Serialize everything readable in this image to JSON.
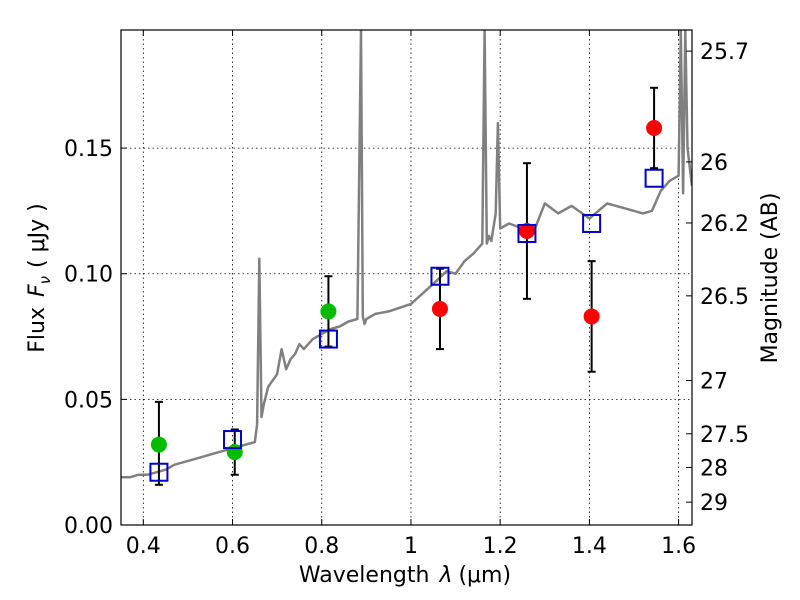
{
  "chart_data": {
    "type": "scatter",
    "xlabel": "Wavelength",
    "xlabel_symbol": "λ",
    "xlabel_unit": "(μm)",
    "ylabel": "Flux",
    "ylabel_symbol": "F",
    "ylabel_subscript": "ν",
    "ylabel_unit": "( μJy )",
    "y2label": "Magnitude (AB)",
    "xlim": [
      0.35,
      1.63
    ],
    "ylim": [
      0.0,
      0.197
    ],
    "grid": true,
    "xticks": [
      0.4,
      0.6,
      0.8,
      1.0,
      1.2,
      1.4,
      1.6
    ],
    "xtick_labels": [
      "0.4",
      "0.6",
      "0.8",
      "1",
      "1.2",
      "1.4",
      "1.6"
    ],
    "yticks": [
      0.0,
      0.05,
      0.1,
      0.15
    ],
    "ytick_labels": [
      "0.00",
      "0.05",
      "0.10",
      "0.15"
    ],
    "y2ticks": [
      {
        "label": "25.7",
        "flux": 0.1886
      },
      {
        "label": "26",
        "flux": 0.1445
      },
      {
        "label": "26.2",
        "flux": 0.1202
      },
      {
        "label": "26.5",
        "flux": 0.0912
      },
      {
        "label": "27",
        "flux": 0.0575
      },
      {
        "label": "27.5",
        "flux": 0.0363
      },
      {
        "label": "28",
        "flux": 0.0229
      },
      {
        "label": "29",
        "flux": 0.0091
      }
    ],
    "series": [
      {
        "name": "model spectrum",
        "kind": "line",
        "color": "#808080",
        "x": [
          0.35,
          0.37,
          0.39,
          0.41,
          0.43,
          0.45,
          0.47,
          0.49,
          0.51,
          0.53,
          0.55,
          0.57,
          0.59,
          0.61,
          0.63,
          0.65,
          0.655,
          0.66,
          0.665,
          0.67,
          0.68,
          0.7,
          0.71,
          0.72,
          0.73,
          0.74,
          0.75,
          0.76,
          0.78,
          0.8,
          0.82,
          0.84,
          0.86,
          0.88,
          0.888,
          0.892,
          0.896,
          0.9,
          0.92,
          0.95,
          1.0,
          1.05,
          1.08,
          1.1,
          1.12,
          1.14,
          1.16,
          1.165,
          1.17,
          1.175,
          1.18,
          1.19,
          1.195,
          1.2,
          1.22,
          1.25,
          1.28,
          1.3,
          1.33,
          1.36,
          1.4,
          1.44,
          1.48,
          1.52,
          1.54,
          1.56,
          1.58,
          1.6,
          1.605,
          1.61,
          1.615,
          1.62,
          1.63
        ],
        "y": [
          0.019,
          0.019,
          0.02,
          0.02,
          0.021,
          0.022,
          0.024,
          0.025,
          0.026,
          0.027,
          0.028,
          0.029,
          0.03,
          0.031,
          0.032,
          0.033,
          0.04,
          0.106,
          0.043,
          0.048,
          0.055,
          0.06,
          0.07,
          0.062,
          0.066,
          0.068,
          0.072,
          0.07,
          0.074,
          0.076,
          0.078,
          0.079,
          0.081,
          0.082,
          0.197,
          0.083,
          0.08,
          0.082,
          0.084,
          0.085,
          0.088,
          0.096,
          0.101,
          0.1,
          0.105,
          0.108,
          0.112,
          0.197,
          0.112,
          0.115,
          0.113,
          0.124,
          0.16,
          0.118,
          0.12,
          0.118,
          0.119,
          0.128,
          0.124,
          0.127,
          0.122,
          0.128,
          0.126,
          0.124,
          0.125,
          0.133,
          0.137,
          0.139,
          0.197,
          0.132,
          0.197,
          0.15,
          0.135
        ]
      },
      {
        "name": "red points",
        "kind": "points",
        "marker": "circle",
        "color": "#ff0000",
        "x": [
          1.065,
          1.26,
          1.405,
          1.545
        ],
        "y": [
          0.086,
          0.117,
          0.083,
          0.158
        ],
        "err_low": [
          0.016,
          0.027,
          0.022,
          0.016
        ],
        "err_high": [
          0.016,
          0.027,
          0.022,
          0.016
        ]
      },
      {
        "name": "green points",
        "kind": "points",
        "marker": "circle",
        "color": "#00bb00",
        "x": [
          0.435,
          0.605,
          0.815
        ],
        "y": [
          0.032,
          0.029,
          0.085
        ],
        "err_low": [
          0.016,
          0.009,
          0.014
        ],
        "err_high": [
          0.017,
          0.009,
          0.014
        ]
      },
      {
        "name": "blue model bandpass",
        "kind": "points",
        "marker": "open-square",
        "color": "#0000cc",
        "x": [
          0.435,
          0.6,
          0.815,
          1.065,
          1.26,
          1.405,
          1.545
        ],
        "y": [
          0.021,
          0.034,
          0.074,
          0.099,
          0.116,
          0.12,
          0.138
        ]
      }
    ]
  }
}
